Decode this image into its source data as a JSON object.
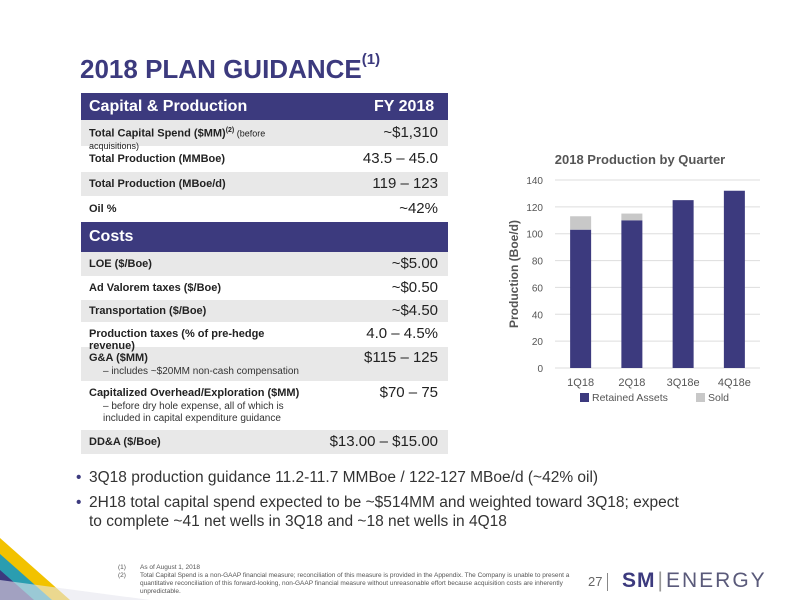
{
  "slide": {
    "title": "2018 PLAN GUIDANCE",
    "title_sup": "(1)"
  },
  "capital": {
    "header_left": "Capital & Production",
    "header_right": "FY 2018",
    "rows": [
      {
        "label": "Total Capital Spend ($MM)",
        "sup": "(2)",
        "note": " (before acquisitions)",
        "value": "~$1,310"
      },
      {
        "label": "Total Production (MMBoe)",
        "value": "43.5 – 45.0"
      },
      {
        "label": "Total Production (MBoe/d)",
        "value": "119 – 123"
      },
      {
        "label": "Oil %",
        "value": "~42%"
      }
    ]
  },
  "costs": {
    "header": "Costs",
    "rows": [
      {
        "label": "LOE ($/Boe)",
        "value": "~$5.00"
      },
      {
        "label": "Ad Valorem taxes ($/Boe)",
        "value": "~$0.50"
      },
      {
        "label": "Transportation ($/Boe)",
        "value": "~$4.50"
      },
      {
        "label": "Production taxes (% of pre-hedge revenue)",
        "value": "4.0 – 4.5%"
      },
      {
        "label": "G&A ($MM)",
        "sub": "– includes ~$20MM non-cash compensation",
        "value": "$115 – 125"
      },
      {
        "label": "Capitalized Overhead/Exploration ($MM)",
        "sub": "– before dry hole expense, all of which is included in capital expenditure guidance",
        "value": "$70 – 75"
      },
      {
        "label": "DD&A ($/Boe)",
        "value": "$13.00 – $15.00"
      }
    ]
  },
  "chart_data": {
    "type": "bar",
    "stacked": true,
    "title": "2018 Production by Quarter",
    "ylabel": "Production (Boe/d)",
    "xlabel": "",
    "categories": [
      "1Q18",
      "2Q18",
      "3Q18e",
      "4Q18e"
    ],
    "series": [
      {
        "name": "Retained Assets",
        "values": [
          103,
          110,
          125,
          132
        ],
        "color": "#3c3a7e"
      },
      {
        "name": "Sold",
        "values": [
          10,
          5,
          0,
          0
        ],
        "color": "#c8c8c8"
      }
    ],
    "ylim": [
      0,
      140
    ],
    "yticks": [
      0,
      20,
      40,
      60,
      80,
      100,
      120,
      140
    ],
    "grid": true,
    "legend": "bottom"
  },
  "bullets": [
    "3Q18 production guidance 11.2-11.7 MMBoe / 122-127 MBoe/d (~42% oil)",
    "2H18 total capital spend expected to be ~$514MM and weighted toward 3Q18; expect to complete ~41 net wells in 3Q18 and ~18 net wells in 4Q18"
  ],
  "footnotes": [
    {
      "num": "(1)",
      "text": "As of August 1, 2018"
    },
    {
      "num": "(2)",
      "text": "Total Capital Spend is a non-GAAP financial measure; reconciliation of this measure is provided in the Appendix. The Company is unable to present a quantitative reconciliation of this forward-looking, non-GAAP financial measure without unreasonable effort because acquisition costs are inherently unpredictable."
    }
  ],
  "page_number": "27",
  "logo": {
    "sm": "SM",
    "sep": "|",
    "energy": "ENERGY"
  },
  "colors": {
    "brand": "#3c3a7e",
    "sold": "#c8c8c8",
    "accent_yellow": "#f2c200",
    "accent_teal": "#2a9db0"
  }
}
